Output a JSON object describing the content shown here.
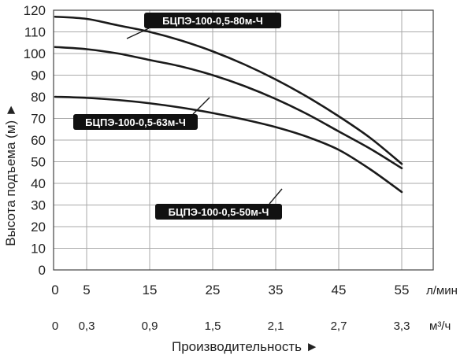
{
  "chart_data": {
    "type": "line",
    "ylabel": "Высота подъема (м) ►",
    "xlabel": "Производительность ►",
    "ylim": [
      0,
      120
    ],
    "xlim": [
      0,
      55
    ],
    "grid": true,
    "y_ticks": [
      0,
      10,
      20,
      30,
      40,
      50,
      60,
      70,
      80,
      90,
      100,
      110,
      120
    ],
    "x_ticks_primary": [
      0,
      5,
      15,
      25,
      35,
      45,
      55
    ],
    "x_unit_primary": "л/мин",
    "x_ticks_secondary": [
      "0",
      "0,3",
      "0,9",
      "1,5",
      "2,1",
      "2,7",
      "3,3"
    ],
    "x_unit_secondary": "м³/ч",
    "series": [
      {
        "name": "БЦПЭ-100-0,5-80м-Ч",
        "x": [
          0,
          5,
          10,
          15,
          20,
          25,
          30,
          35,
          40,
          45,
          50,
          55
        ],
        "y": [
          117,
          116,
          113,
          110,
          106,
          101,
          95,
          88,
          80,
          71,
          61,
          49
        ]
      },
      {
        "name": "БЦПЭ-100-0,5-63м-Ч",
        "x": [
          0,
          5,
          10,
          15,
          20,
          25,
          30,
          35,
          40,
          45,
          50,
          55
        ],
        "y": [
          103,
          102,
          100,
          97,
          94,
          90,
          85,
          79,
          72,
          64,
          56,
          47
        ]
      },
      {
        "name": "БЦПЭ-100-0,5-50м-Ч",
        "x": [
          0,
          5,
          10,
          15,
          20,
          25,
          30,
          35,
          40,
          45,
          50,
          55
        ],
        "y": [
          80,
          79.5,
          78.5,
          77,
          75,
          72.5,
          69.5,
          66,
          61.5,
          55.5,
          46.5,
          36
        ]
      }
    ]
  }
}
